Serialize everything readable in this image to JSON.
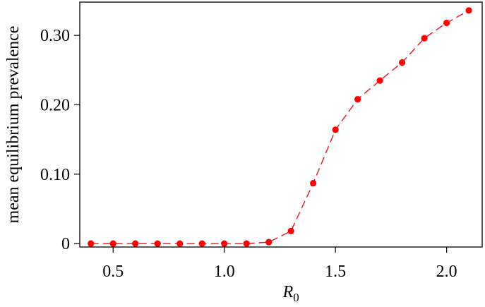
{
  "chart_data": {
    "type": "line",
    "title": "",
    "xlabel": "R",
    "xlabel_subscript": "0",
    "ylabel": "mean equilibrium prevalence",
    "xlim": [
      0.35,
      2.16
    ],
    "ylim": [
      -0.005,
      0.348
    ],
    "x_ticks": [
      0.5,
      1.0,
      1.5,
      2.0
    ],
    "x_tick_labels": [
      "0.5",
      "1.0",
      "1.5",
      "2.0"
    ],
    "y_ticks": [
      0,
      0.1,
      0.2,
      0.3
    ],
    "y_tick_labels": [
      "0",
      "0.10",
      "0.20",
      "0.30"
    ],
    "grid": false,
    "color": "#ff0000",
    "series": [
      {
        "x": [
          0.4,
          0.5,
          0.6,
          0.7,
          0.8,
          0.9,
          1.0,
          1.1,
          1.2,
          1.3,
          1.4,
          1.5,
          1.6,
          1.7,
          1.8,
          1.9,
          2.0,
          2.1
        ],
        "values": [
          0,
          0,
          0,
          0,
          0,
          0,
          0,
          0,
          0.002,
          0.018,
          0.087,
          0.164,
          0.208,
          0.235,
          0.261,
          0.296,
          0.318,
          0.336
        ]
      }
    ]
  }
}
